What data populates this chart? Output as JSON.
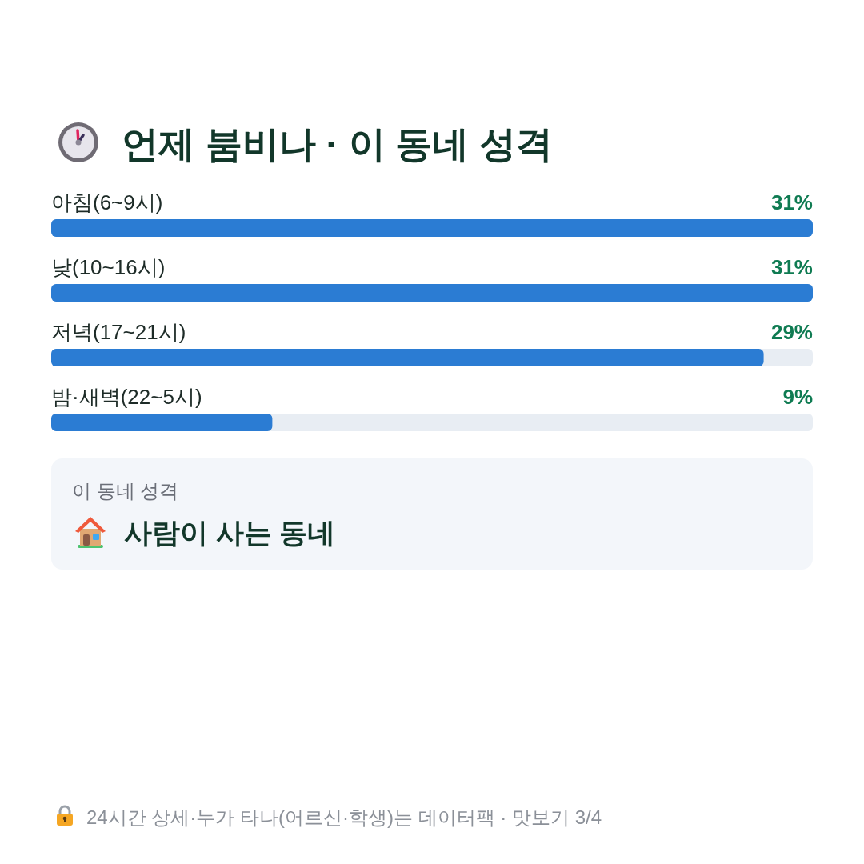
{
  "chart_data": [
    {
      "type": "bar",
      "orientation": "horizontal",
      "title": "언제 붐비나 · 이 동네 성격",
      "categories": [
        "아침(6~9시)",
        "낮(10~16시)",
        "저녁(17~21시)",
        "밤·새벽(22~5시)"
      ],
      "values": [
        31,
        31,
        29,
        9
      ],
      "value_labels": [
        "31%",
        "31%",
        "29%",
        "9%"
      ],
      "color": "#2b7cd3",
      "annotations": [
        "24시간 상세·누가 타나(어르신·학생)는 데이터팩 · 맛보기 3/4"
      ]
    },
    {
      "type": "other",
      "title": "이 동네 성격",
      "annotations": [
        "사람이 사는 동네"
      ]
    }
  ]
}
